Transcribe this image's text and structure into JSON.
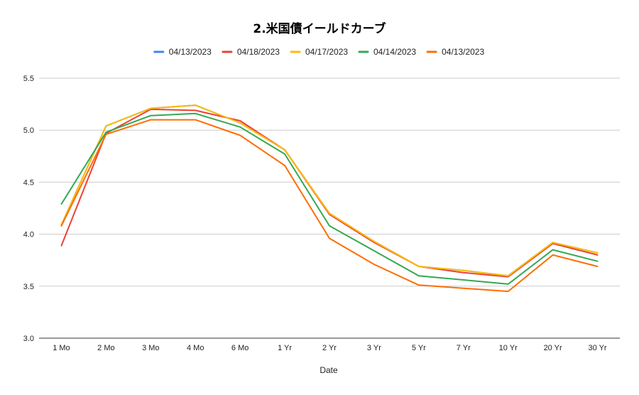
{
  "chart_data": {
    "type": "line",
    "title": "2.米国債イールドカーブ",
    "xlabel": "Date",
    "ylabel": "",
    "ylim": [
      3.0,
      5.5
    ],
    "yticks": [
      "3.0",
      "3.5",
      "4.0",
      "4.5",
      "5.0",
      "5.5"
    ],
    "legend_position": "top",
    "grid": true,
    "categories": [
      "1 Mo",
      "2 Mo",
      "3 Mo",
      "4 Mo",
      "6 Mo",
      "1 Yr",
      "2 Yr",
      "3 Yr",
      "5 Yr",
      "7 Yr",
      "10 Yr",
      "20 Yr",
      "30 Yr"
    ],
    "series": [
      {
        "name": "04/13/2023",
        "color": "#4285f4",
        "values": [
          4.09,
          5.04,
          5.21,
          5.24,
          5.07,
          4.81,
          4.2,
          3.93,
          3.69,
          3.65,
          3.6,
          3.92,
          3.82
        ]
      },
      {
        "name": "04/18/2023",
        "color": "#ea4335",
        "values": [
          3.89,
          4.97,
          5.2,
          5.19,
          5.09,
          4.81,
          4.19,
          3.92,
          3.69,
          3.63,
          3.59,
          3.91,
          3.8
        ]
      },
      {
        "name": "04/17/2023",
        "color": "#fbbc04",
        "values": [
          4.09,
          5.04,
          5.21,
          5.24,
          5.07,
          4.81,
          4.2,
          3.93,
          3.69,
          3.65,
          3.6,
          3.92,
          3.82
        ]
      },
      {
        "name": "04/14/2023",
        "color": "#34a853",
        "values": [
          4.29,
          4.98,
          5.14,
          5.16,
          5.03,
          4.77,
          4.08,
          3.84,
          3.6,
          3.56,
          3.52,
          3.85,
          3.74
        ]
      },
      {
        "name": "04/13/2023",
        "color": "#ff6d01",
        "values": [
          4.08,
          4.96,
          5.1,
          5.1,
          4.95,
          4.66,
          3.96,
          3.71,
          3.51,
          3.48,
          3.45,
          3.8,
          3.69
        ]
      }
    ]
  }
}
